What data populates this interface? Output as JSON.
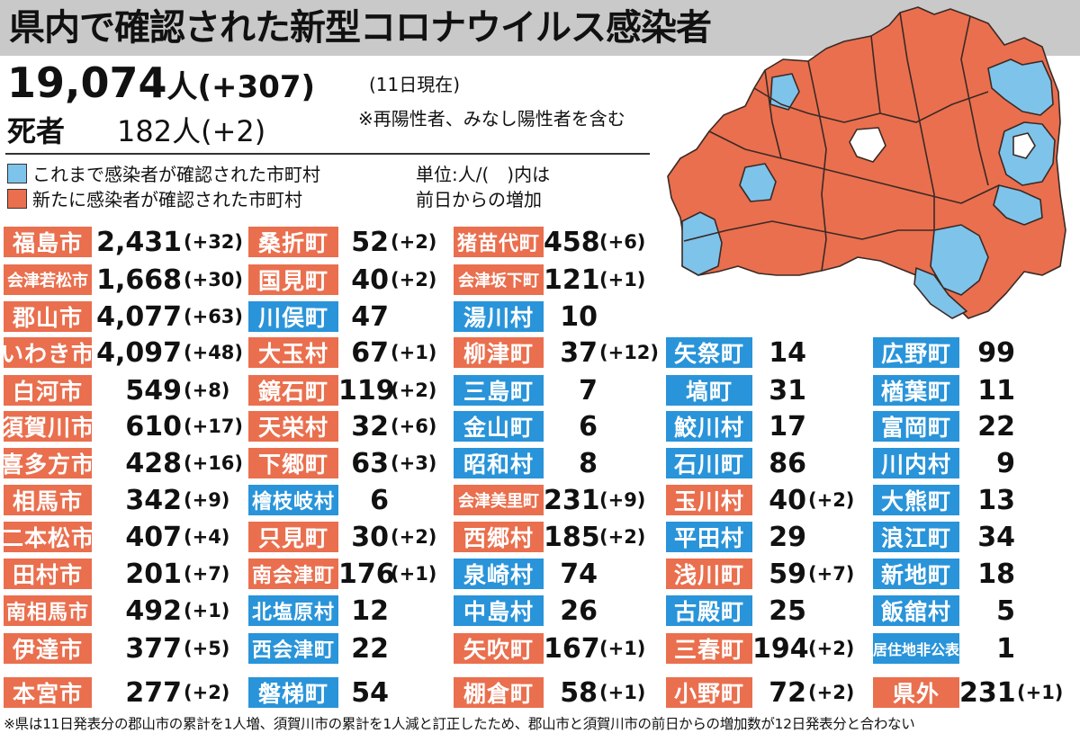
{
  "title": "県内で確認された新型コロナウイルス感染者",
  "summary": {
    "total": "19,074",
    "total_unit": "人",
    "total_delta": "(+307)",
    "as_of": "(11日現在)",
    "note": "※再陽性者、みなし陽性者を含む",
    "deaths_label": "死者",
    "deaths": "182人(+2)"
  },
  "legend": {
    "existing": "これまで感染者が確認された市町村",
    "new": "新たに感染者が確認された市町村",
    "unit_line1": "単位:人/(　)内は",
    "unit_line2": "前日からの増加"
  },
  "colors": {
    "new": "#ea6f4e",
    "existing": "#7ec3ea",
    "tag_existing": "#2994d9",
    "uninfected": "#ffffff"
  },
  "columns": [
    [
      {
        "name": "福島市",
        "value": "2,431",
        "delta": "(+32)",
        "status": "new"
      },
      {
        "name": "会津若松市",
        "value": "1,668",
        "delta": "(+30)",
        "status": "new"
      },
      {
        "name": "郡山市",
        "value": "4,077",
        "delta": "(+63)",
        "status": "new"
      },
      {
        "name": "いわき市",
        "value": "4,097",
        "delta": "(+48)",
        "status": "new"
      },
      {
        "name": "白河市",
        "value": "549",
        "delta": "(+8)",
        "status": "new"
      },
      {
        "name": "須賀川市",
        "value": "610",
        "delta": "(+17)",
        "status": "new"
      },
      {
        "name": "喜多方市",
        "value": "428",
        "delta": "(+16)",
        "status": "new"
      },
      {
        "name": "相馬市",
        "value": "342",
        "delta": "(+9)",
        "status": "new"
      },
      {
        "name": "二本松市",
        "value": "407",
        "delta": "(+4)",
        "status": "new"
      },
      {
        "name": "田村市",
        "value": "201",
        "delta": "(+7)",
        "status": "new"
      },
      {
        "name": "南相馬市",
        "value": "492",
        "delta": "(+1)",
        "status": "new"
      },
      {
        "name": "伊達市",
        "value": "377",
        "delta": "(+5)",
        "status": "new"
      },
      {
        "name": "本宮市",
        "value": "277",
        "delta": "(+2)",
        "status": "new"
      }
    ],
    [
      {
        "name": "桑折町",
        "value": "52",
        "delta": "(+2)",
        "status": "new"
      },
      {
        "name": "国見町",
        "value": "40",
        "delta": "(+2)",
        "status": "new"
      },
      {
        "name": "川俣町",
        "value": "47",
        "delta": "",
        "status": "old"
      },
      {
        "name": "大玉村",
        "value": "67",
        "delta": "(+1)",
        "status": "new"
      },
      {
        "name": "鏡石町",
        "value": "119",
        "delta": "(+2)",
        "status": "new"
      },
      {
        "name": "天栄村",
        "value": "32",
        "delta": "(+6)",
        "status": "new"
      },
      {
        "name": "下郷町",
        "value": "63",
        "delta": "(+3)",
        "status": "new"
      },
      {
        "name": "檜枝岐村",
        "value": "6",
        "delta": "",
        "status": "old"
      },
      {
        "name": "只見町",
        "value": "30",
        "delta": "(+2)",
        "status": "new"
      },
      {
        "name": "南会津町",
        "value": "176",
        "delta": "(+1)",
        "status": "new"
      },
      {
        "name": "北塩原村",
        "value": "12",
        "delta": "",
        "status": "old"
      },
      {
        "name": "西会津町",
        "value": "22",
        "delta": "",
        "status": "old"
      },
      {
        "name": "磐梯町",
        "value": "54",
        "delta": "",
        "status": "old"
      }
    ],
    [
      {
        "name": "猪苗代町",
        "value": "458",
        "delta": "(+6)",
        "status": "new"
      },
      {
        "name": "会津坂下町",
        "value": "121",
        "delta": "(+1)",
        "status": "new"
      },
      {
        "name": "湯川村",
        "value": "10",
        "delta": "",
        "status": "old"
      },
      {
        "name": "柳津町",
        "value": "37",
        "delta": "(+12)",
        "status": "new"
      },
      {
        "name": "三島町",
        "value": "7",
        "delta": "",
        "status": "old"
      },
      {
        "name": "金山町",
        "value": "6",
        "delta": "",
        "status": "old"
      },
      {
        "name": "昭和村",
        "value": "8",
        "delta": "",
        "status": "old"
      },
      {
        "name": "会津美里町",
        "value": "231",
        "delta": "(+9)",
        "status": "new"
      },
      {
        "name": "西郷村",
        "value": "185",
        "delta": "(+2)",
        "status": "new"
      },
      {
        "name": "泉崎村",
        "value": "74",
        "delta": "",
        "status": "old"
      },
      {
        "name": "中島村",
        "value": "26",
        "delta": "",
        "status": "old"
      },
      {
        "name": "矢吹町",
        "value": "167",
        "delta": "(+1)",
        "status": "new"
      },
      {
        "name": "棚倉町",
        "value": "58",
        "delta": "(+1)",
        "status": "new"
      }
    ],
    [
      {
        "name": "矢祭町",
        "value": "14",
        "delta": "",
        "status": "old"
      },
      {
        "name": "塙町",
        "value": "31",
        "delta": "",
        "status": "old"
      },
      {
        "name": "鮫川村",
        "value": "17",
        "delta": "",
        "status": "old"
      },
      {
        "name": "石川町",
        "value": "86",
        "delta": "",
        "status": "old"
      },
      {
        "name": "玉川村",
        "value": "40",
        "delta": "(+2)",
        "status": "new"
      },
      {
        "name": "平田村",
        "value": "29",
        "delta": "",
        "status": "old"
      },
      {
        "name": "浅川町",
        "value": "59",
        "delta": "(+7)",
        "status": "new"
      },
      {
        "name": "古殿町",
        "value": "25",
        "delta": "",
        "status": "old"
      },
      {
        "name": "三春町",
        "value": "194",
        "delta": "(+2)",
        "status": "new"
      },
      {
        "name": "小野町",
        "value": "72",
        "delta": "(+2)",
        "status": "new"
      }
    ],
    [
      {
        "name": "広野町",
        "value": "99",
        "delta": "",
        "status": "old"
      },
      {
        "name": "楢葉町",
        "value": "11",
        "delta": "",
        "status": "old"
      },
      {
        "name": "富岡町",
        "value": "22",
        "delta": "",
        "status": "old"
      },
      {
        "name": "川内村",
        "value": "9",
        "delta": "",
        "status": "old"
      },
      {
        "name": "大熊町",
        "value": "13",
        "delta": "",
        "status": "old"
      },
      {
        "name": "浪江町",
        "value": "34",
        "delta": "",
        "status": "old"
      },
      {
        "name": "新地町",
        "value": "18",
        "delta": "",
        "status": "old"
      },
      {
        "name": "飯舘村",
        "value": "5",
        "delta": "",
        "status": "old"
      },
      {
        "name": "居住地非公表",
        "value": "1",
        "delta": "",
        "status": "old"
      },
      {
        "name": "県外",
        "value": "231",
        "delta": "(+1)",
        "status": "new"
      }
    ]
  ],
  "footnote": "※県は11日発表分の郡山市の累計を1人増、須賀川市の累計を1人減と訂正したため、郡山市と須賀川市の前日からの増加数が12日発表分と合わない"
}
